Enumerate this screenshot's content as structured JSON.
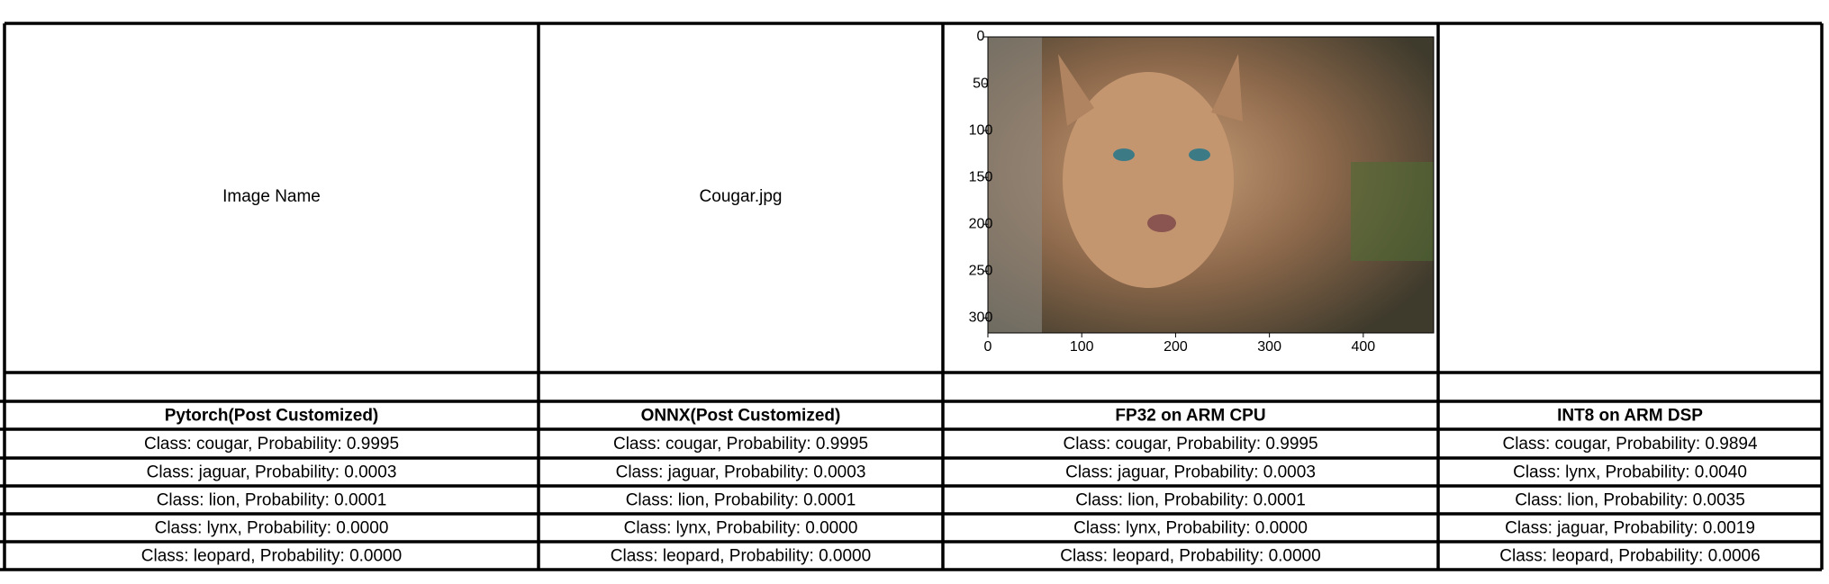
{
  "table": {
    "top_row": [
      "Image Name",
      "Cougar.jpg"
    ],
    "plot": {
      "xlim": [
        0,
        475
      ],
      "ylim": [
        0,
        316
      ],
      "y_inverted": true,
      "xticks": [
        0,
        100,
        200,
        300,
        400
      ],
      "yticks": [
        0,
        50,
        100,
        150,
        200,
        250,
        300
      ]
    },
    "column_headers": [
      "Pytorch(Post Customized)",
      "ONNX(Post Customized)",
      "FP32 on ARM CPU",
      "INT8 on ARM DSP"
    ],
    "rows": [
      [
        "Class: cougar, Probability: 0.9995",
        "Class: cougar, Probability: 0.9995",
        "Class: cougar, Probability: 0.9995",
        "Class: cougar, Probability: 0.9894"
      ],
      [
        "Class: jaguar, Probability: 0.0003",
        "Class: jaguar, Probability: 0.0003",
        "Class: jaguar, Probability: 0.0003",
        "Class: lynx, Probability: 0.0040"
      ],
      [
        "Class: lion, Probability: 0.0001",
        "Class: lion, Probability: 0.0001",
        "Class: lion, Probability: 0.0001",
        "Class: lion, Probability: 0.0035"
      ],
      [
        "Class: lynx, Probability: 0.0000",
        "Class: lynx, Probability: 0.0000",
        "Class: lynx, Probability: 0.0000",
        "Class: jaguar, Probability: 0.0019"
      ],
      [
        "Class: leopard, Probability: 0.0000",
        "Class: leopard, Probability: 0.0000",
        "Class: leopard, Probability: 0.0000",
        "Class: leopard, Probability: 0.0006"
      ]
    ]
  }
}
